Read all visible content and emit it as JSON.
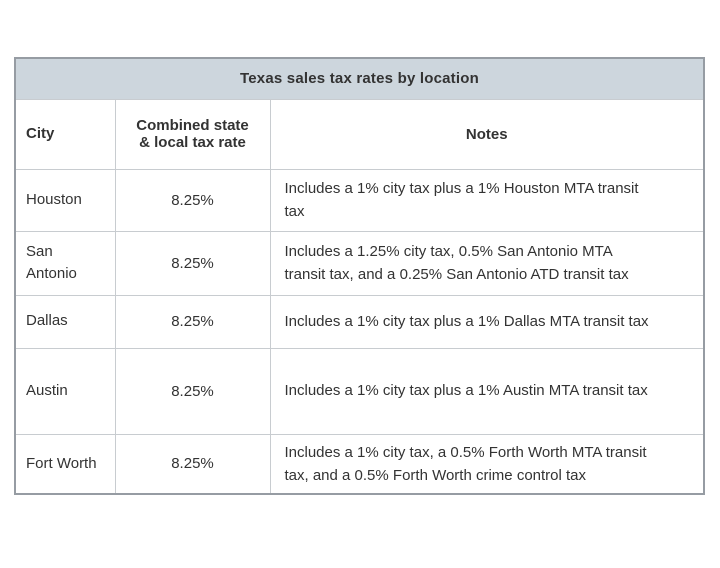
{
  "chart_data": {
    "type": "table",
    "title": "Texas sales tax rates by location",
    "columns": [
      "City",
      "Combined state & local tax rate",
      "Notes"
    ],
    "rows": [
      [
        "Houston",
        "8.25%",
        "Includes a 1% city tax plus a 1% Houston MTA transit tax"
      ],
      [
        "San Antonio",
        "8.25%",
        "Includes a 1.25% city tax, 0.5% San Antonio MTA transit tax, and a 0.25% San Antonio ATD transit tax"
      ],
      [
        "Dallas",
        "8.25%",
        "Includes a 1% city tax plus a 1% Dallas MTA transit tax"
      ],
      [
        "Austin",
        "8.25%",
        "Includes a 1% city tax plus a 1% Austin MTA transit tax"
      ],
      [
        "Fort Worth",
        "8.25%",
        "Includes a 1% city tax, a 0.5% Forth Worth MTA transit tax, and a 0.5% Forth Worth crime control tax"
      ]
    ],
    "layout": {
      "title_bg": "#cdd6dd",
      "outer_border": "#969ca3",
      "inner_border": "#c8ccd0",
      "text_color": "#333333"
    }
  }
}
